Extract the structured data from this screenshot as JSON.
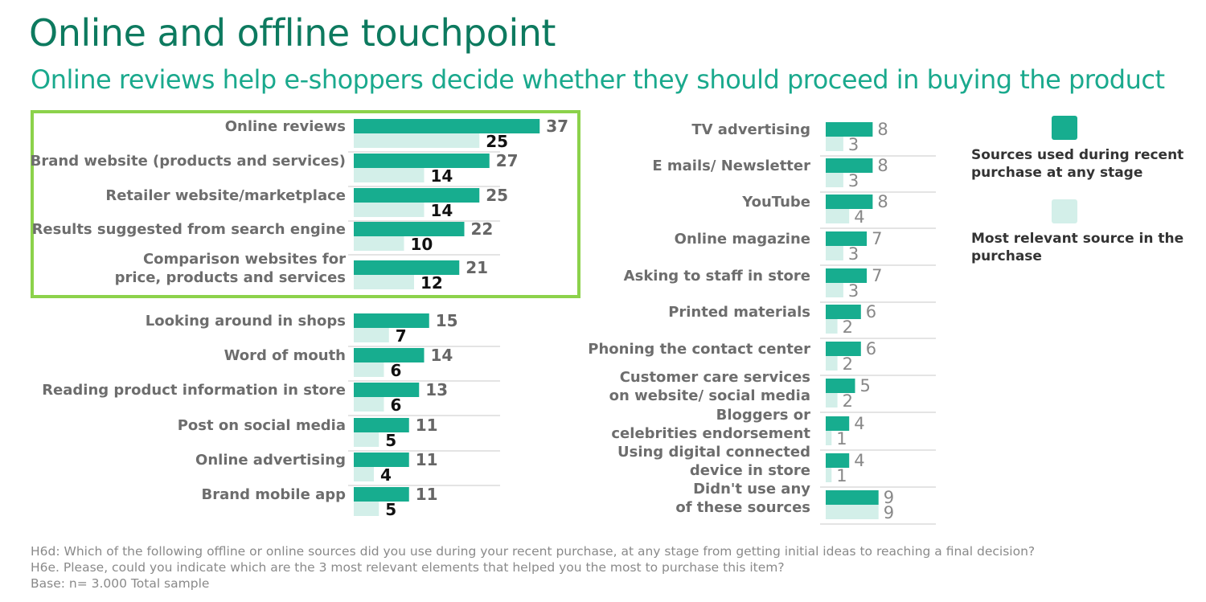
{
  "title": "Online and offline touchpoint",
  "subtitle": "Online reviews help e-shoppers decide whether they should proceed in buying the product",
  "colors": {
    "used": "#17ad8f",
    "relevant": "#d3efe9",
    "highlight": "#8cd24b",
    "title": "#0d7a5f"
  },
  "legend": {
    "used": "Sources used during recent purchase at any stage",
    "relevant": "Most relevant source in the purchase"
  },
  "chart_data": [
    {
      "type": "bar",
      "orientation": "horizontal",
      "name": "left",
      "categories": [
        "Online reviews",
        "Brand website (products and services)",
        "Retailer website/marketplace",
        "Results suggested from search engine",
        "Comparison websites for price, products and services",
        "Looking around in shops",
        "Word of mouth",
        "Reading product information in store",
        "Post on social media",
        "Online advertising",
        "Brand mobile app"
      ],
      "series": [
        {
          "name": "Sources used during recent purchase at any stage",
          "values": [
            37,
            27,
            25,
            22,
            21,
            15,
            14,
            13,
            11,
            11,
            11
          ]
        },
        {
          "name": "Most relevant source in the purchase",
          "values": [
            25,
            14,
            14,
            10,
            12,
            7,
            6,
            6,
            5,
            4,
            5
          ]
        }
      ]
    },
    {
      "type": "bar",
      "orientation": "horizontal",
      "name": "right",
      "categories": [
        "TV advertising",
        "E mails/ Newsletter",
        "YouTube",
        "Online magazine",
        "Asking to staff in store",
        "Printed materials",
        "Phoning the contact center",
        "Customer care services on website/ social media",
        "Bloggers or celebrities endorsement",
        "Using digital connected device in store",
        "Didn't use any of these sources"
      ],
      "series": [
        {
          "name": "Sources used during recent purchase at any stage",
          "values": [
            8,
            8,
            8,
            7,
            7,
            6,
            6,
            5,
            4,
            4,
            9
          ]
        },
        {
          "name": "Most relevant source in the purchase",
          "values": [
            3,
            3,
            4,
            3,
            3,
            2,
            2,
            2,
            1,
            1,
            9
          ]
        }
      ]
    }
  ],
  "notes": [
    "H6d: Which of the following offline or online sources did you use during your recent purchase, at any stage from getting initial ideas to reaching a final decision?",
    "H6e. Please, could you indicate which are the 3 most relevant elements that helped you the most to purchase this item?",
    "Base: n= 3.000   Total sample"
  ]
}
